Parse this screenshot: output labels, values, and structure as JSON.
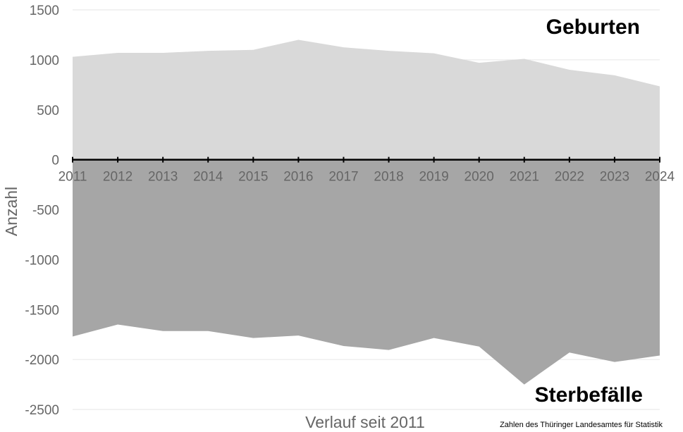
{
  "chart_data": {
    "type": "area",
    "x": [
      2011,
      2012,
      2013,
      2014,
      2015,
      2016,
      2017,
      2018,
      2019,
      2020,
      2021,
      2022,
      2023,
      2024
    ],
    "series": [
      {
        "name": "Geburten",
        "values": [
          1030,
          1070,
          1070,
          1090,
          1100,
          1200,
          1125,
          1090,
          1065,
          970,
          1010,
          900,
          845,
          735
        ],
        "color": "#d9d9d9"
      },
      {
        "name": "Sterbefälle",
        "values": [
          -1770,
          -1650,
          -1715,
          -1715,
          -1785,
          -1760,
          -1865,
          -1905,
          -1785,
          -1870,
          -2250,
          -1930,
          -2025,
          -1960
        ],
        "color": "#a6a6a6"
      }
    ],
    "xlabel": "Verlauf seit 2011",
    "ylabel": "Anzahl",
    "ylim": [
      -2500,
      1500
    ],
    "yticks": [
      1500,
      1000,
      500,
      0,
      -500,
      -1000,
      -1500,
      -2000,
      -2500
    ],
    "grid": true,
    "source": "Zahlen des Thüringer Landesamtes für Statistik"
  }
}
